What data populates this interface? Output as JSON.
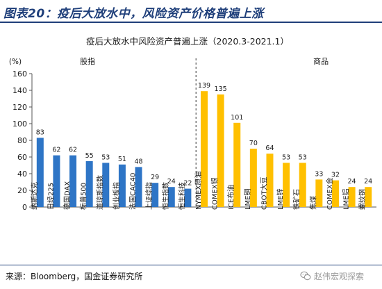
{
  "figure": {
    "label": "图表20：疫后大放水中，风险资产价格普遍上涨",
    "source": "来源：Bloomberg，国金证券研究所",
    "watermark": "赵伟宏观探索"
  },
  "chart_data": {
    "type": "bar",
    "title": "疫后大放水中风险资产普遍上涨（2020.3-2021.1）",
    "ylabel": "(%)",
    "ylim": [
      0,
      160
    ],
    "yticks": [
      0,
      20,
      40,
      60,
      80,
      100,
      120,
      140,
      160
    ],
    "grid": false,
    "groups": [
      {
        "name": "股指",
        "color": "#2e75c6",
        "categories": [
          "纳斯达克",
          "日经225",
          "德国DAX",
          "标普500",
          "道琼斯指数",
          "创业板指",
          "法国CAC40",
          "上证综指",
          "恒生指数",
          "恒生科技"
        ],
        "values": [
          83,
          62,
          62,
          55,
          53,
          51,
          48,
          29,
          24,
          22
        ]
      },
      {
        "name": "商品",
        "color": "#ffc000",
        "categories": [
          "NYMEX原油",
          "COMEX银",
          "ICE布油",
          "LME铜",
          "CBOT大豆",
          "LME锌",
          "铁矿石",
          "焦煤",
          "COMEX金",
          "LME铝",
          "螺纹钢"
        ],
        "values": [
          139,
          135,
          101,
          70,
          64,
          53,
          53,
          33,
          32,
          24,
          24
        ]
      }
    ]
  }
}
